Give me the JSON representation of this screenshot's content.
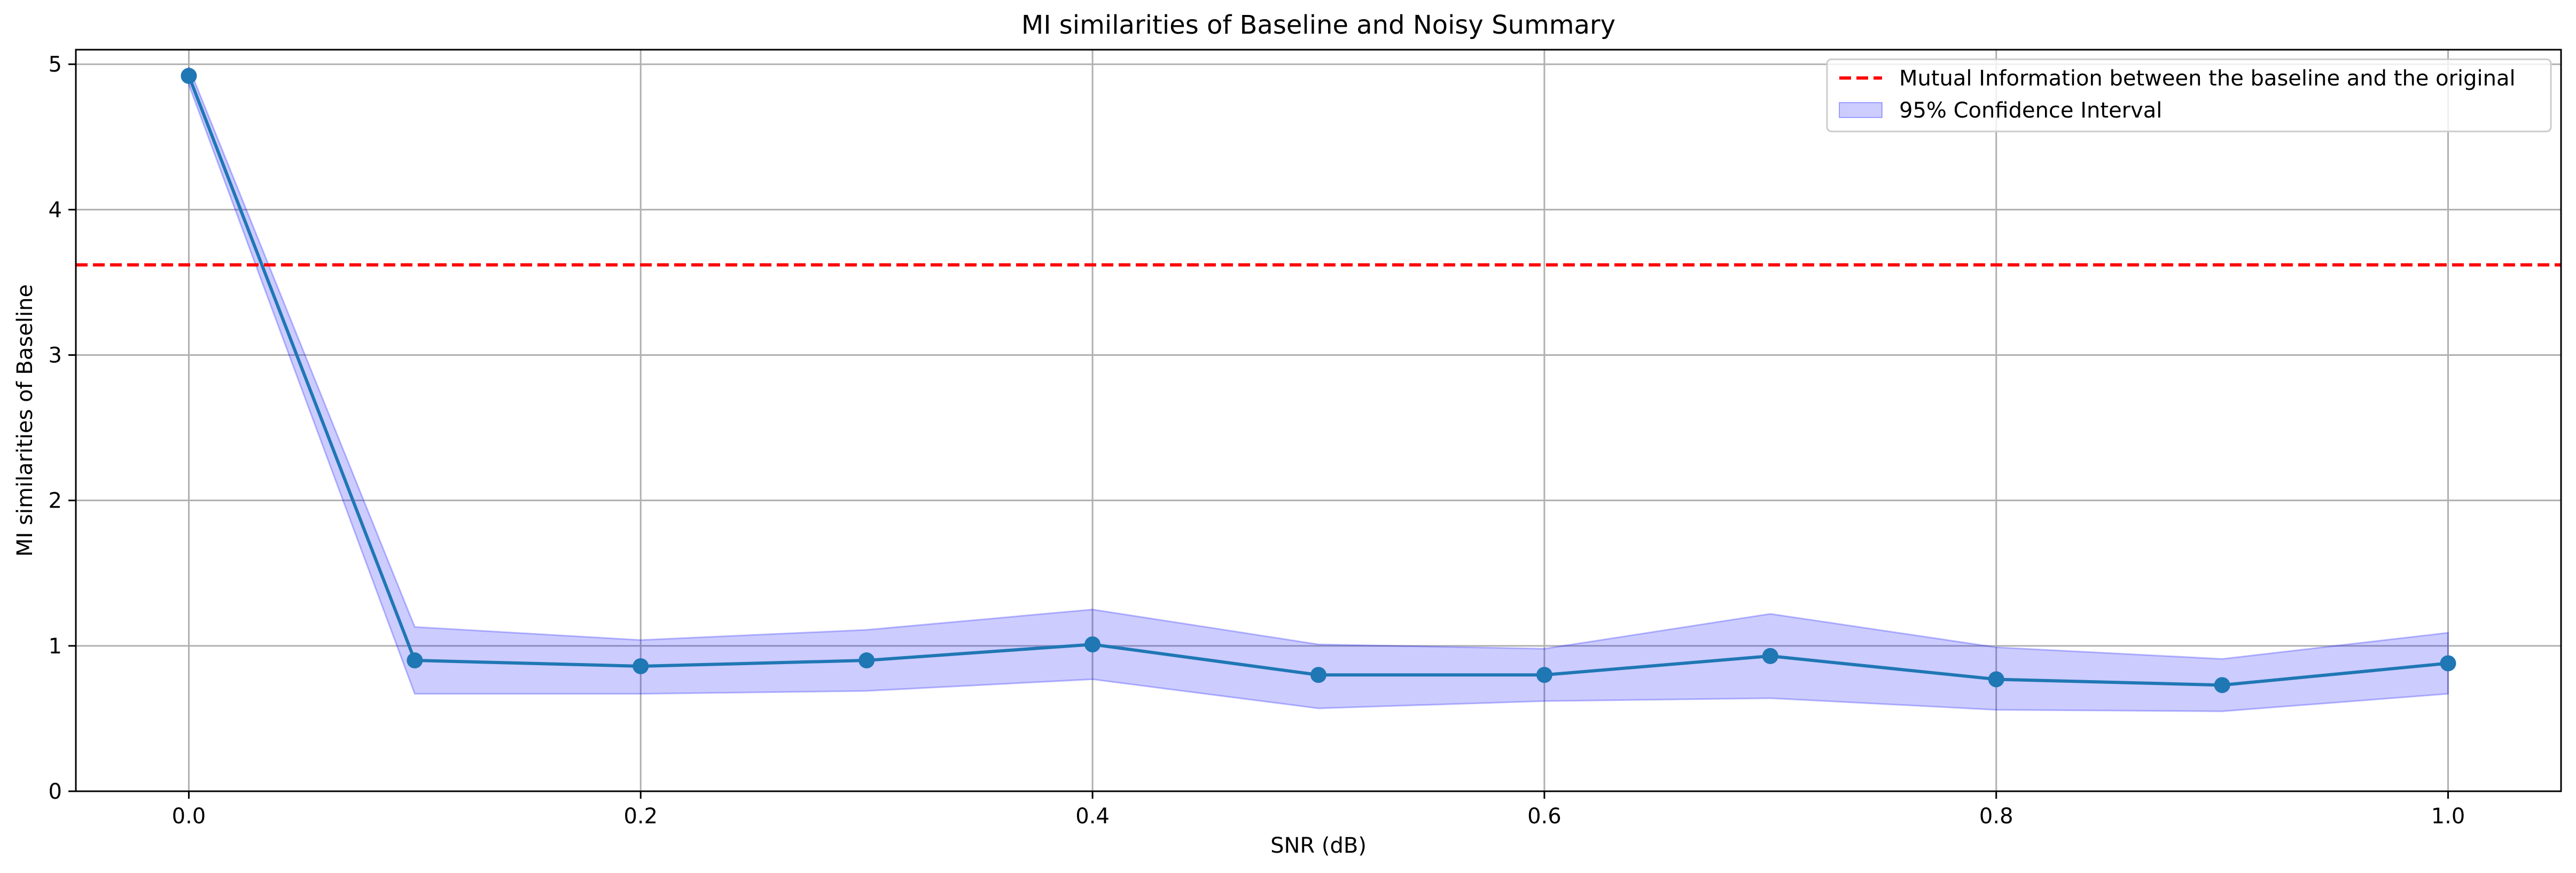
{
  "chart_data": {
    "type": "line",
    "title": "MI similarities of Baseline and Noisy Summary",
    "xlabel": "SNR (dB)",
    "ylabel": "MI similarities of Baseline",
    "xlim": [
      -0.05,
      1.05
    ],
    "ylim": [
      0,
      5.1
    ],
    "x_ticks": [
      "0.0",
      "0.2",
      "0.4",
      "0.6",
      "0.8",
      "1.0"
    ],
    "y_ticks": [
      "0",
      "1",
      "2",
      "3",
      "4",
      "5"
    ],
    "grid": true,
    "legend_position": "top-right",
    "series": [
      {
        "x": [
          0.0,
          0.1,
          0.2,
          0.3,
          0.4,
          0.5,
          0.6,
          0.7,
          0.8,
          0.9,
          1.0
        ],
        "y": [
          4.92,
          0.9,
          0.86,
          0.9,
          1.01,
          0.8,
          0.8,
          0.93,
          0.77,
          0.73,
          0.88
        ],
        "color": "#1f77b4",
        "marker": "circle"
      }
    ],
    "confidence_band": {
      "name": "95% Confidence Interval",
      "x": [
        0.0,
        0.1,
        0.2,
        0.3,
        0.4,
        0.5,
        0.6,
        0.7,
        0.8,
        0.9,
        1.0
      ],
      "lower": [
        4.86,
        0.67,
        0.67,
        0.69,
        0.77,
        0.57,
        0.62,
        0.64,
        0.56,
        0.55,
        0.67
      ],
      "upper": [
        4.98,
        1.13,
        1.04,
        1.11,
        1.25,
        1.01,
        0.98,
        1.22,
        0.99,
        0.91,
        1.09
      ],
      "fill_color": "#0000ff",
      "fill_opacity": 0.2
    },
    "reference_line": {
      "name": "Mutual Information between the baseline and the original",
      "y": 3.62,
      "color": "#ff0000",
      "style": "dashed"
    }
  }
}
